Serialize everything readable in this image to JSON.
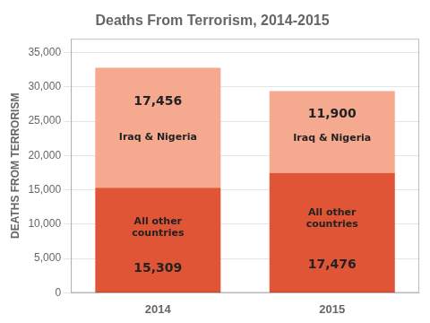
{
  "chart_data": {
    "type": "bar",
    "stacked": true,
    "title": "Deaths From Terrorism, 2014-2015",
    "ylabel": "DEATHS FROM TERRORISM",
    "categories": [
      "2014",
      "2015"
    ],
    "series": [
      {
        "name": "All other\ncountries",
        "color": "#e05535",
        "values": [
          15309,
          17476
        ],
        "value_labels": [
          "15,309",
          "17,476"
        ]
      },
      {
        "name": "Iraq & Nigeria",
        "color": "#f5aa90",
        "values": [
          17456,
          11900
        ],
        "value_labels": [
          "17,456",
          "11,900"
        ]
      }
    ],
    "ylim": [
      0,
      37000
    ],
    "yticks": [
      0,
      {
        "value": 5000,
        "label": "5,000"
      },
      {
        "value": 10000,
        "label": "10,000"
      },
      {
        "value": 15000,
        "label": "15,000"
      },
      {
        "value": 20000,
        "label": "20,000"
      },
      {
        "value": 25000,
        "label": "25,000"
      },
      {
        "value": 30000,
        "label": "30,000"
      },
      {
        "value": 35000,
        "label": "35,000"
      }
    ],
    "grid": true,
    "data_labels": true
  }
}
